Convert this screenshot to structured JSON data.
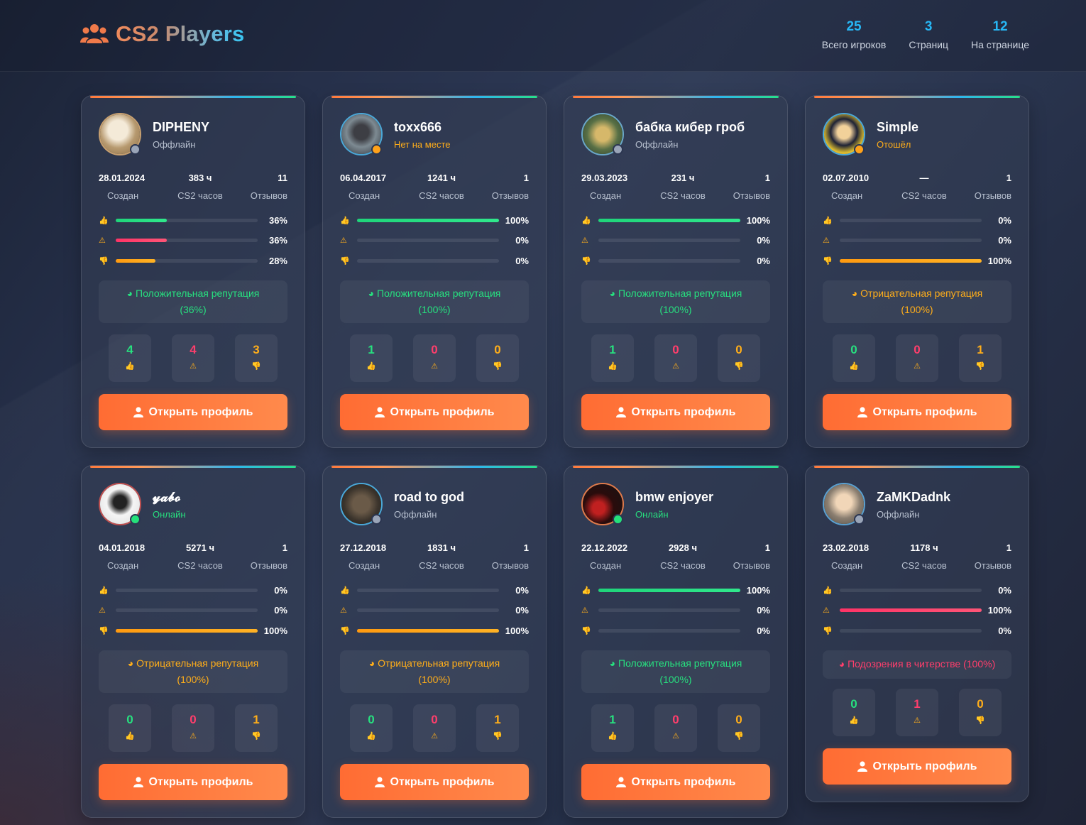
{
  "header": {
    "title": "CS2 Players",
    "stats": [
      {
        "value": "25",
        "label": "Всего игроков"
      },
      {
        "value": "3",
        "label": "Страниц"
      },
      {
        "value": "12",
        "label": "На странице"
      }
    ]
  },
  "colors": {
    "positive": "#27e07f",
    "cheat": "#ff3e6c",
    "negative": "#ffae1a",
    "accent": "#ff7a3d",
    "info": "#27b7f5"
  },
  "labels": {
    "created": "Создан",
    "hours": "CS2 часов",
    "reviews": "Отзывов",
    "open_profile": "Открыть профиль"
  },
  "players": [
    {
      "nick": "DIPHENY",
      "status": "Оффлайн",
      "status_kind": "offline",
      "created": "28.01.2024",
      "hours": "383 ч",
      "reviews": "11",
      "pos_pct": "36%",
      "cheat_pct": "36%",
      "neg_pct": "28%",
      "pos_fill": 0.36,
      "cheat_fill": 0.36,
      "neg_fill": 0.28,
      "rep_text": "Положительная репутация",
      "rep_value": "(36%)",
      "rep_kind": "positive",
      "pos_count": "4",
      "cheat_count": "4",
      "neg_count": "3"
    },
    {
      "nick": "toxx666",
      "status": "Нет на месте",
      "status_kind": "away",
      "created": "06.04.2017",
      "hours": "1241 ч",
      "reviews": "1",
      "pos_pct": "100%",
      "cheat_pct": "0%",
      "neg_pct": "0%",
      "pos_fill": 1.0,
      "cheat_fill": 0,
      "neg_fill": 0,
      "rep_text": "Положительная репутация",
      "rep_value": "(100%)",
      "rep_kind": "positive",
      "pos_count": "1",
      "cheat_count": "0",
      "neg_count": "0"
    },
    {
      "nick": "бабка кибер гроб",
      "status": "Оффлайн",
      "status_kind": "offline",
      "created": "29.03.2023",
      "hours": "231 ч",
      "reviews": "1",
      "pos_pct": "100%",
      "cheat_pct": "0%",
      "neg_pct": "0%",
      "pos_fill": 1.0,
      "cheat_fill": 0,
      "neg_fill": 0,
      "rep_text": "Положительная репутация",
      "rep_value": "(100%)",
      "rep_kind": "positive",
      "pos_count": "1",
      "cheat_count": "0",
      "neg_count": "0"
    },
    {
      "nick": "Simple",
      "status": "Отошёл",
      "status_kind": "away",
      "created": "02.07.2010",
      "hours": "—",
      "reviews": "1",
      "pos_pct": "0%",
      "cheat_pct": "0%",
      "neg_pct": "100%",
      "pos_fill": 0,
      "cheat_fill": 0,
      "neg_fill": 1.0,
      "rep_text": "Отрицательная репутация",
      "rep_value": "(100%)",
      "rep_kind": "negative",
      "pos_count": "0",
      "cheat_count": "0",
      "neg_count": "1"
    },
    {
      "nick": "𝔂𝓪𝓫𝓸",
      "status": "Онлайн",
      "status_kind": "online",
      "created": "04.01.2018",
      "hours": "5271 ч",
      "reviews": "1",
      "pos_pct": "0%",
      "cheat_pct": "0%",
      "neg_pct": "100%",
      "pos_fill": 0,
      "cheat_fill": 0,
      "neg_fill": 1.0,
      "rep_text": "Отрицательная репутация",
      "rep_value": "(100%)",
      "rep_kind": "negative",
      "pos_count": "0",
      "cheat_count": "0",
      "neg_count": "1"
    },
    {
      "nick": "road to god",
      "status": "Оффлайн",
      "status_kind": "offline",
      "created": "27.12.2018",
      "hours": "1831 ч",
      "reviews": "1",
      "pos_pct": "0%",
      "cheat_pct": "0%",
      "neg_pct": "100%",
      "pos_fill": 0,
      "cheat_fill": 0,
      "neg_fill": 1.0,
      "rep_text": "Отрицательная репутация",
      "rep_value": "(100%)",
      "rep_kind": "negative",
      "pos_count": "0",
      "cheat_count": "0",
      "neg_count": "1"
    },
    {
      "nick": "bmw enjoyer",
      "status": "Онлайн",
      "status_kind": "online",
      "created": "22.12.2022",
      "hours": "2928 ч",
      "reviews": "1",
      "pos_pct": "100%",
      "cheat_pct": "0%",
      "neg_pct": "0%",
      "pos_fill": 1.0,
      "cheat_fill": 0,
      "neg_fill": 0,
      "rep_text": "Положительная репутация",
      "rep_value": "(100%)",
      "rep_kind": "positive",
      "pos_count": "1",
      "cheat_count": "0",
      "neg_count": "0"
    },
    {
      "nick": "ZaMKDadnk",
      "status": "Оффлайн",
      "status_kind": "offline",
      "created": "23.02.2018",
      "hours": "1178 ч",
      "reviews": "1",
      "pos_pct": "0%",
      "cheat_pct": "100%",
      "neg_pct": "0%",
      "pos_fill": 0,
      "cheat_fill": 1.0,
      "neg_fill": 0,
      "rep_text": "Подозрения в читерстве",
      "rep_value": "(100%)",
      "rep_kind": "cheat",
      "pos_count": "0",
      "cheat_count": "1",
      "neg_count": "0"
    }
  ]
}
